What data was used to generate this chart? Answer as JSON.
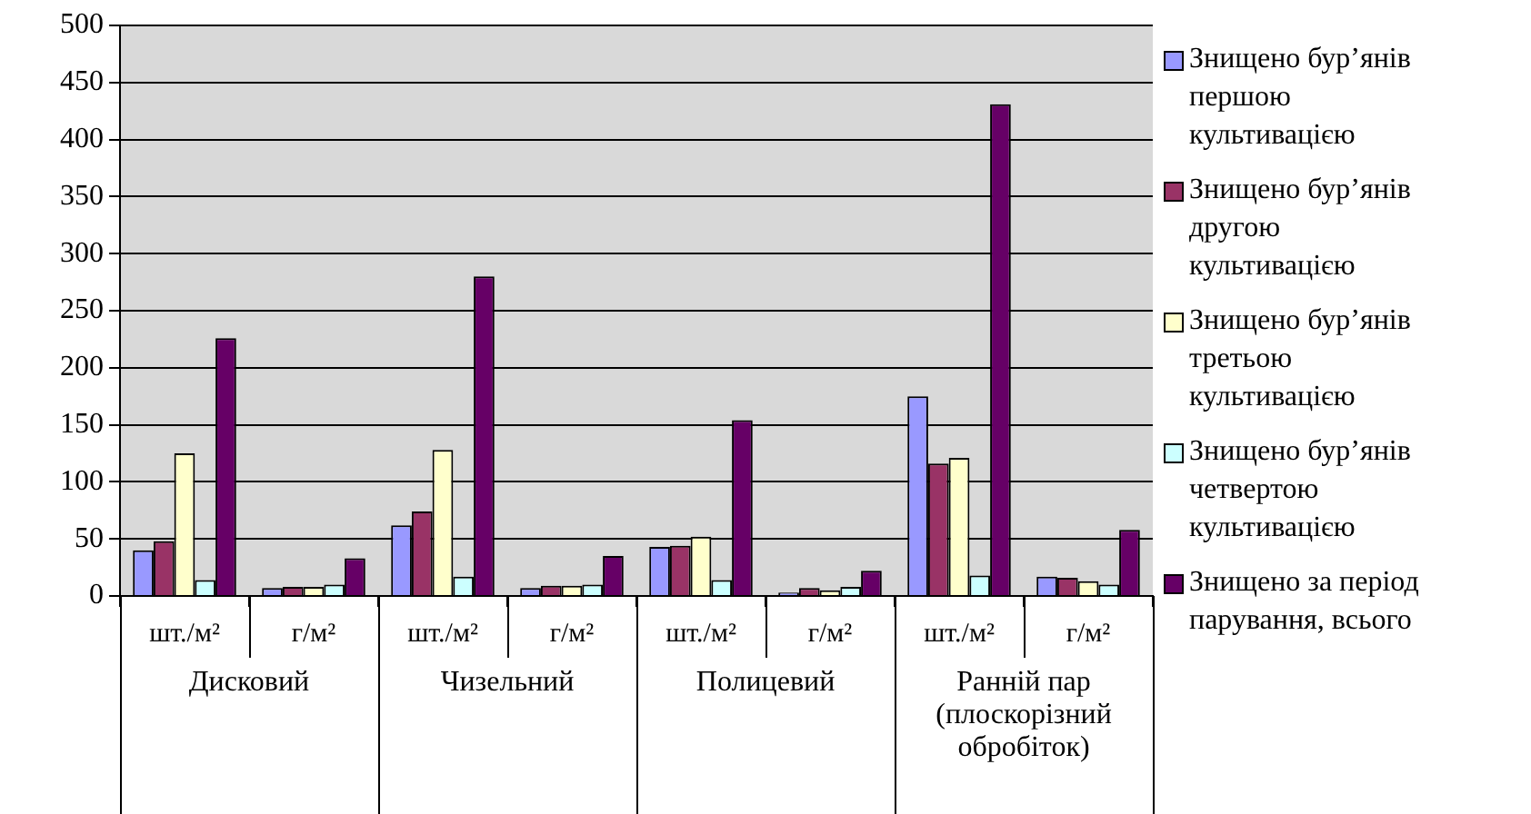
{
  "chart_data": {
    "type": "bar",
    "categories": [
      "шт./м²",
      "г/м²",
      "шт./м²",
      "г/м²",
      "шт./м²",
      "г/м²",
      "шт./м²",
      "г/м²"
    ],
    "annotations": [
      "Дисковий",
      "Чизельний",
      "Полицевий",
      "Ранній пар (плоскорізний обробіток)"
    ],
    "series": [
      {
        "name": "Знищено бур’янів першою культивацією",
        "color": "#9999ff",
        "values": [
          40,
          7,
          62,
          7,
          43,
          3,
          175,
          17
        ]
      },
      {
        "name": "Знищено бур’янів другою культивацією",
        "color": "#993366",
        "values": [
          48,
          8,
          74,
          9,
          44,
          7,
          116,
          16
        ]
      },
      {
        "name": "Знищено бур’янів третьою культивацією",
        "color": "#ffffcc",
        "values": [
          125,
          8,
          128,
          9,
          52,
          5,
          121,
          13
        ]
      },
      {
        "name": "Знищено бур’янів четвертою культивацією",
        "color": "#ccffff",
        "values": [
          14,
          10,
          17,
          10,
          14,
          8,
          18,
          10
        ]
      },
      {
        "name": "Знищено за період парування, всього",
        "color": "#660066",
        "values": [
          226,
          33,
          280,
          35,
          154,
          22,
          431,
          58
        ]
      }
    ],
    "ylim": [
      0,
      500
    ],
    "yticks": [
      0,
      50,
      100,
      150,
      200,
      250,
      300,
      350,
      400,
      450,
      500
    ],
    "grid": "y",
    "legend": "right"
  }
}
